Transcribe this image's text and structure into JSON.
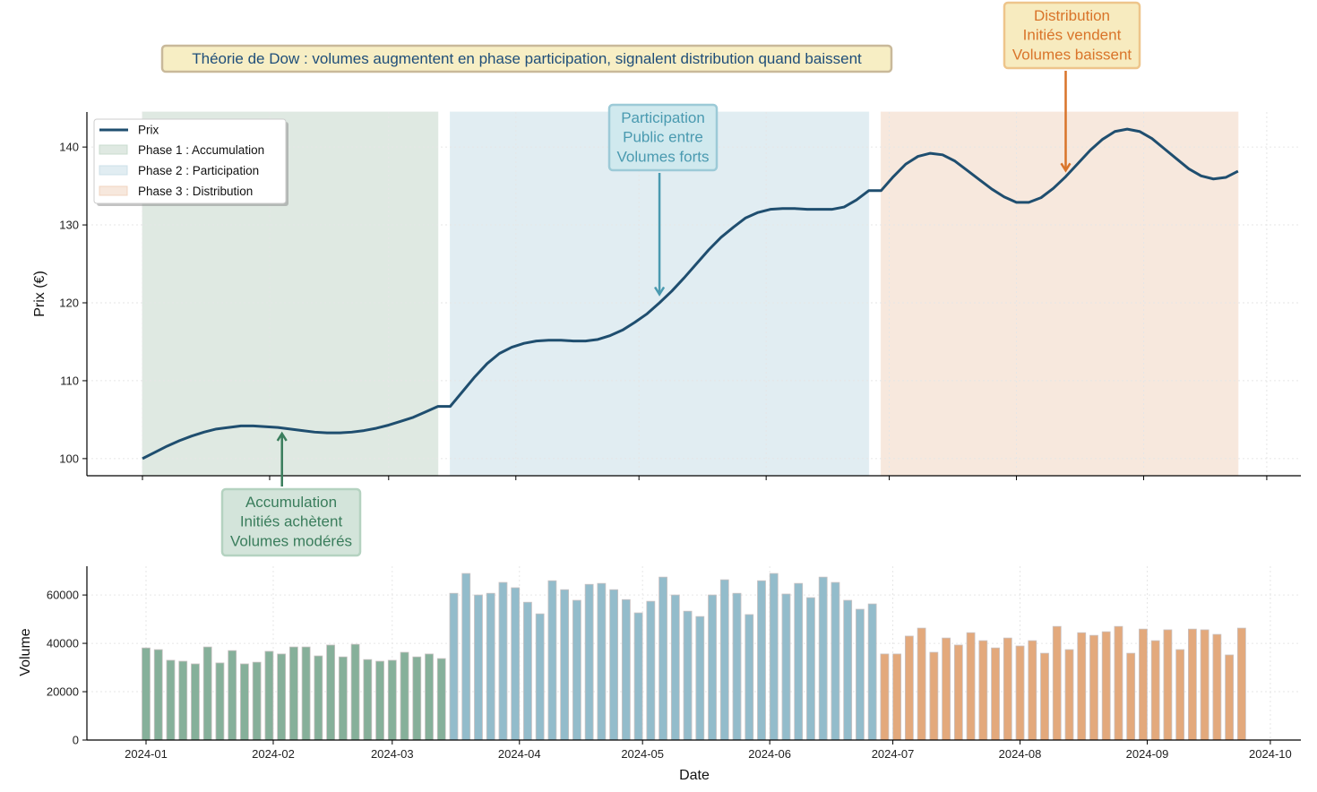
{
  "chart_data": [
    {
      "type": "line",
      "panel": "price",
      "title": "Théorie de Dow : volumes augmentent en phase participation, signalent distribution quand baissent",
      "xlabel": "",
      "ylabel": "Prix (€)",
      "ylim": [
        97.8,
        144.5
      ],
      "yticks": [
        100,
        110,
        120,
        130,
        140
      ],
      "grid": true,
      "legend": {
        "placement": "top-left",
        "entries": [
          "Prix",
          "Phase 1 : Accumulation",
          "Phase 2 : Participation",
          "Phase 3 : Distribution"
        ]
      },
      "phases": [
        {
          "name": "Phase 1 : Accumulation",
          "start": "2024-01-01",
          "end": "2024-03-13",
          "color": "#dfe9e2"
        },
        {
          "name": "Phase 2 : Participation",
          "start": "2024-03-16",
          "end": "2024-06-26",
          "color": "#e1edf2"
        },
        {
          "name": "Phase 3 : Distribution",
          "start": "2024-06-29",
          "end": "2024-09-24",
          "color": "#f7e8dd"
        }
      ],
      "series": [
        {
          "name": "Prix",
          "color": "#1f4e6f",
          "values": [
            100.0,
            100.8,
            101.6,
            102.3,
            102.9,
            103.4,
            103.8,
            104.0,
            104.2,
            104.2,
            104.1,
            104.0,
            103.8,
            103.6,
            103.4,
            103.3,
            103.3,
            103.4,
            103.6,
            103.9,
            104.3,
            104.8,
            105.3,
            106.0,
            106.7,
            106.7,
            108.6,
            110.5,
            112.2,
            113.5,
            114.3,
            114.8,
            115.1,
            115.2,
            115.2,
            115.1,
            115.1,
            115.3,
            115.8,
            116.5,
            117.5,
            118.6,
            120.0,
            121.5,
            123.2,
            125.0,
            126.8,
            128.4,
            129.7,
            130.9,
            131.6,
            132.0,
            132.1,
            132.1,
            132.0,
            132.0,
            132.0,
            132.3,
            133.2,
            134.4,
            134.4,
            136.2,
            137.8,
            138.8,
            139.2,
            139.0,
            138.2,
            137.0,
            135.8,
            134.6,
            133.6,
            132.9,
            132.9,
            133.5,
            134.7,
            136.2,
            137.9,
            139.6,
            141.0,
            142.0,
            142.3,
            142.0,
            141.1,
            139.8,
            138.5,
            137.2,
            136.3,
            135.9,
            136.1,
            136.9
          ]
        }
      ],
      "annotations": [
        {
          "text": [
            "Accumulation",
            "Initiés achètent",
            "Volumes modérés"
          ],
          "date": "2024-02-04",
          "value": 103.9,
          "color": "#3a7d5c",
          "bg": "#d3e4da",
          "border": "#b4d2c0"
        },
        {
          "text": [
            "Participation",
            "Public entre",
            "Volumes forts"
          ],
          "date": "2024-05-06",
          "value": 120.4,
          "color": "#4a9ab0",
          "bg": "#d0e9ee",
          "border": "#9ccad7"
        },
        {
          "text": [
            "Distribution",
            "Initiés vendent",
            "Volumes baissent"
          ],
          "date": "2024-08-13",
          "value": 136.3,
          "color": "#d9742a",
          "bg": "#f7ebbf",
          "border": "#eec58b"
        }
      ]
    },
    {
      "type": "bar",
      "panel": "volume",
      "xlabel": "Date",
      "ylabel": "Volume",
      "ylim": [
        0,
        71900
      ],
      "yticks": [
        0,
        20000,
        40000,
        60000
      ],
      "xticks": [
        "2024-01",
        "2024-02",
        "2024-03",
        "2024-04",
        "2024-05",
        "2024-06",
        "2024-07",
        "2024-08",
        "2024-09",
        "2024-10"
      ],
      "grid": true,
      "phase_colors": [
        "#86b09a",
        "#93bccb",
        "#e3a97c"
      ],
      "x": [
        "2024-01-01",
        "2024-01-04",
        "2024-01-07",
        "2024-01-10",
        "2024-01-13",
        "2024-01-16",
        "2024-01-19",
        "2024-01-22",
        "2024-01-25",
        "2024-01-28",
        "2024-01-31",
        "2024-02-03",
        "2024-02-06",
        "2024-02-09",
        "2024-02-12",
        "2024-02-15",
        "2024-02-18",
        "2024-02-21",
        "2024-02-24",
        "2024-02-27",
        "2024-03-01",
        "2024-03-04",
        "2024-03-07",
        "2024-03-10",
        "2024-03-13",
        "2024-03-16",
        "2024-03-19",
        "2024-03-22",
        "2024-03-25",
        "2024-03-28",
        "2024-03-31",
        "2024-04-03",
        "2024-04-06",
        "2024-04-09",
        "2024-04-12",
        "2024-04-15",
        "2024-04-18",
        "2024-04-21",
        "2024-04-24",
        "2024-04-27",
        "2024-04-30",
        "2024-05-03",
        "2024-05-06",
        "2024-05-09",
        "2024-05-12",
        "2024-05-15",
        "2024-05-18",
        "2024-05-21",
        "2024-05-24",
        "2024-05-27",
        "2024-05-30",
        "2024-06-02",
        "2024-06-05",
        "2024-06-08",
        "2024-06-11",
        "2024-06-14",
        "2024-06-17",
        "2024-06-20",
        "2024-06-23",
        "2024-06-26",
        "2024-06-29",
        "2024-07-02",
        "2024-07-05",
        "2024-07-08",
        "2024-07-11",
        "2024-07-14",
        "2024-07-17",
        "2024-07-20",
        "2024-07-23",
        "2024-07-26",
        "2024-07-29",
        "2024-08-01",
        "2024-08-04",
        "2024-08-07",
        "2024-08-10",
        "2024-08-13",
        "2024-08-16",
        "2024-08-19",
        "2024-08-22",
        "2024-08-25",
        "2024-08-28",
        "2024-08-31",
        "2024-09-03",
        "2024-09-06",
        "2024-09-09",
        "2024-09-12",
        "2024-09-15",
        "2024-09-18",
        "2024-09-21",
        "2024-09-24"
      ],
      "phase": [
        1,
        1,
        1,
        1,
        1,
        1,
        1,
        1,
        1,
        1,
        1,
        1,
        1,
        1,
        1,
        1,
        1,
        1,
        1,
        1,
        1,
        1,
        1,
        1,
        1,
        2,
        2,
        2,
        2,
        2,
        2,
        2,
        2,
        2,
        2,
        2,
        2,
        2,
        2,
        2,
        2,
        2,
        2,
        2,
        2,
        2,
        2,
        2,
        2,
        2,
        2,
        2,
        2,
        2,
        2,
        2,
        2,
        2,
        2,
        2,
        3,
        3,
        3,
        3,
        3,
        3,
        3,
        3,
        3,
        3,
        3,
        3,
        3,
        3,
        3,
        3,
        3,
        3,
        3,
        3,
        3,
        3,
        3,
        3,
        3,
        3,
        3,
        3,
        3,
        3
      ],
      "values": [
        38100,
        37400,
        33000,
        32600,
        31500,
        38500,
        31900,
        37000,
        31500,
        32200,
        36700,
        35600,
        38500,
        38500,
        34800,
        39300,
        34400,
        39600,
        33300,
        32600,
        33000,
        36300,
        34400,
        35600,
        33700,
        60700,
        68900,
        60000,
        60700,
        65200,
        63000,
        57000,
        52200,
        65900,
        62200,
        57800,
        64400,
        64800,
        62200,
        58100,
        52600,
        57400,
        67400,
        60000,
        53300,
        51100,
        60000,
        66300,
        60700,
        51900,
        65900,
        68900,
        60400,
        64800,
        58900,
        67400,
        65200,
        57800,
        54100,
        56300,
        35600,
        35600,
        43000,
        46300,
        36300,
        42200,
        39300,
        44400,
        41100,
        38100,
        42200,
        38900,
        41100,
        35900,
        47000,
        37400,
        44400,
        43300,
        44800,
        47000,
        35900,
        45900,
        41100,
        45600,
        37400,
        45900,
        45600,
        43700,
        35200,
        46300
      ]
    }
  ]
}
